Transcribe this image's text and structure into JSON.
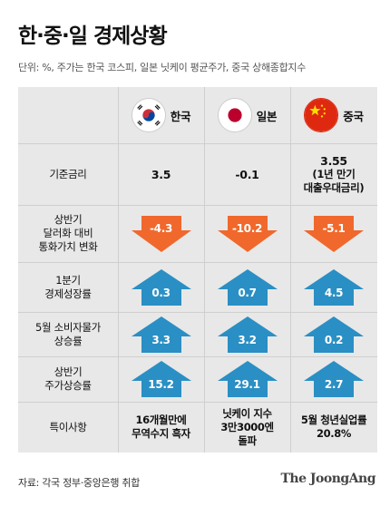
{
  "title": "한·중·일 경제상황",
  "unit": "단위: %, 주가는 한국 코스피, 일본 닛케이 평균주가, 중국 상해종합지수",
  "colors": {
    "down": "#f0682c",
    "up": "#2a8fc4",
    "up_light": "#9fd0ea"
  },
  "countries": [
    {
      "name": "한국",
      "flag": "korea-flag-icon"
    },
    {
      "name": "일본",
      "flag": "japan-flag-icon"
    },
    {
      "name": "중국",
      "flag": "china-flag-icon"
    }
  ],
  "rows": {
    "base_rate": {
      "label": "기준금리",
      "values": [
        "3.5",
        "-0.1",
        "3.55",
        "(1년 만기",
        "대출우대금리)"
      ]
    },
    "currency": {
      "label_1": "상반기",
      "label_2": "달러화 대비",
      "label_3": "통화가치 변화",
      "values": [
        "-4.3",
        "-10.2",
        "-5.1"
      ]
    },
    "growth": {
      "label_1": "1분기",
      "label_2": "경제성장률",
      "values": [
        "0.3",
        "0.7",
        "4.5"
      ]
    },
    "cpi": {
      "label_1": "5월 소비자물가",
      "label_2": "상승률",
      "values": [
        "3.3",
        "3.2",
        "0.2"
      ]
    },
    "stock": {
      "label_1": "상반기",
      "label_2": "주가상승률",
      "values": [
        "15.2",
        "29.1",
        "2.7"
      ]
    },
    "special": {
      "label": "특이사항",
      "korea_1": "16개월만에",
      "korea_2": "무역수지 흑자",
      "japan_1": "닛케이 지수",
      "japan_2": "3만3000엔",
      "japan_3": "돌파",
      "china_1": "5월 청년실업률",
      "china_2": "20.8%"
    }
  },
  "source": "자료: 각국 정부·중앙은행 취합",
  "brand": "The JoongAng"
}
